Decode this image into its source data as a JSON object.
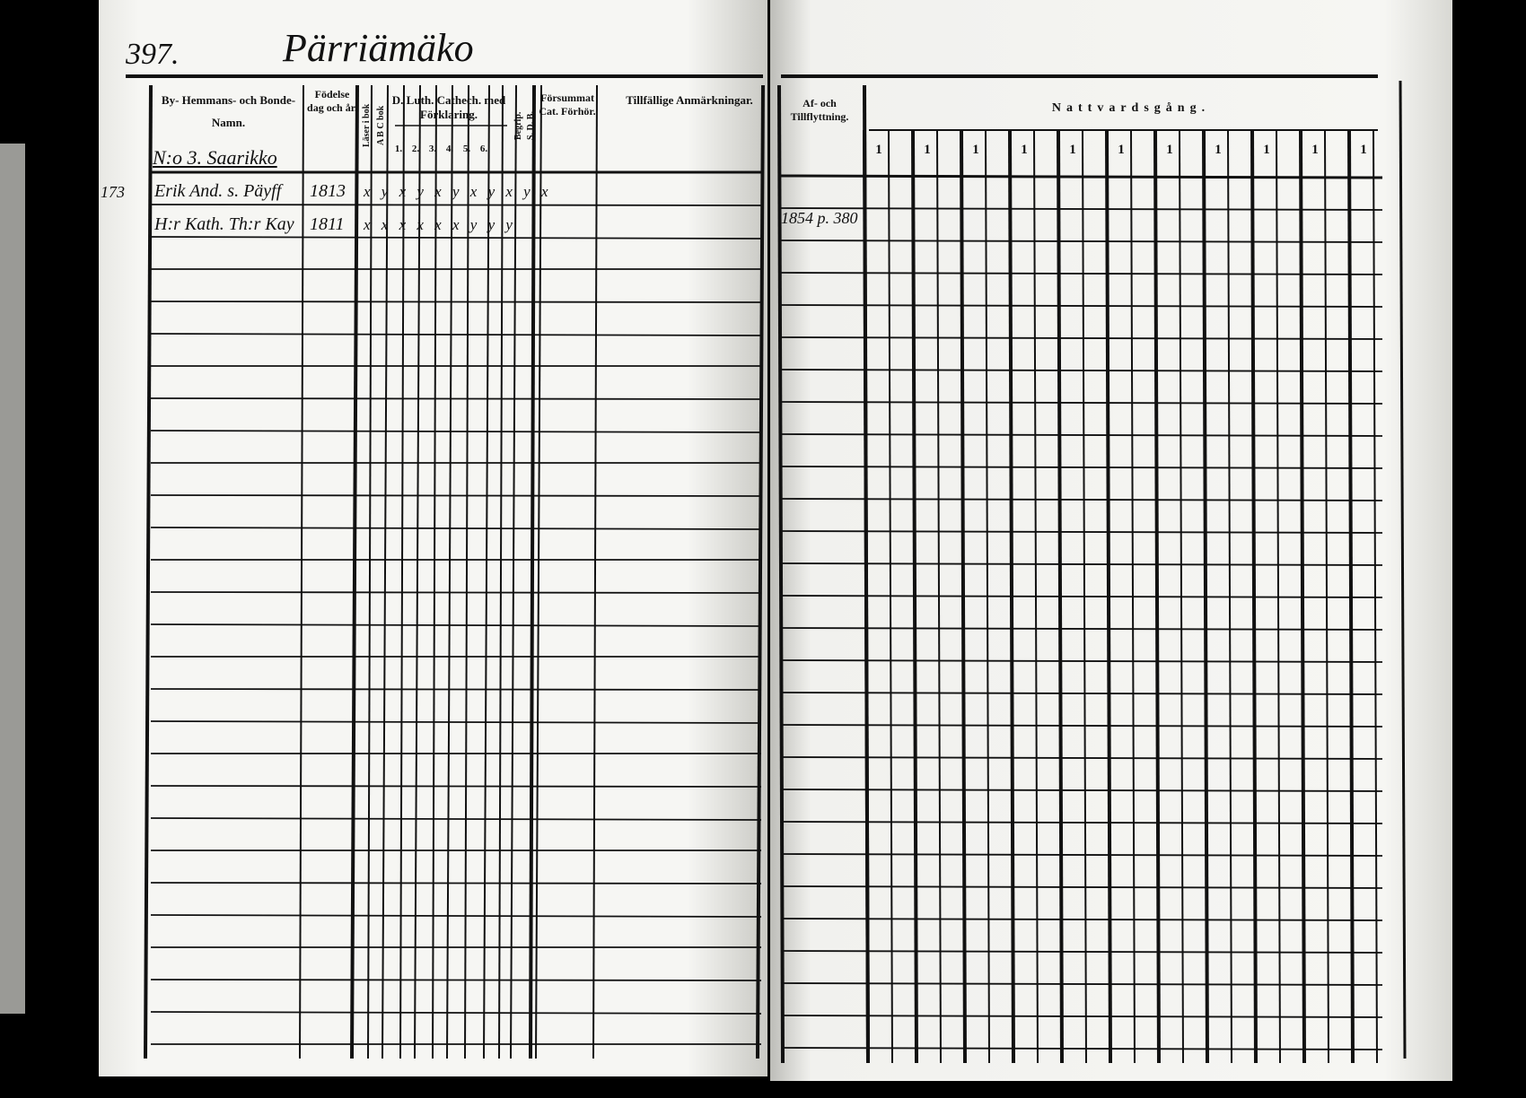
{
  "page_number": "397.",
  "village_title": "Pärriämäko",
  "left_page": {
    "headers": {
      "name": "By- Hemmans- och Bonde-Namn.",
      "birth": "Födelse dag och år.",
      "reads_book": "Läser i bok",
      "abc": "A B C bok",
      "catechism": "D. Luth. Cathech. med Förklaring.",
      "catechism_parts": [
        "1.",
        "2.",
        "3.",
        "4.",
        "5.",
        "6."
      ],
      "begrip": "Begrip.",
      "sdb": "S. D. B.",
      "missed": "Försummat Cat. Förhör."
    },
    "farm_label": "N:o 3. Saarikko",
    "margin_number": "173",
    "rows": [
      {
        "name": "Erik And. s. Päyff",
        "birth": "1813",
        "marks": "x y x y x y x y x y x"
      },
      {
        "name": "H:r Kath. Th:r Kay",
        "birth": "1811",
        "marks": "x x x x x x y y y"
      }
    ]
  },
  "right_page": {
    "headers": {
      "remarks": "Tillfällige Anmärkningar.",
      "moving": "Af- och Tillflyttning.",
      "communion": "Nattvardsgång."
    },
    "communion_marks": [
      "1",
      "1",
      "1",
      "1",
      "1",
      "1",
      "1",
      "1",
      "1",
      "1",
      "1"
    ],
    "moving_entry": "1854 p. 380"
  }
}
